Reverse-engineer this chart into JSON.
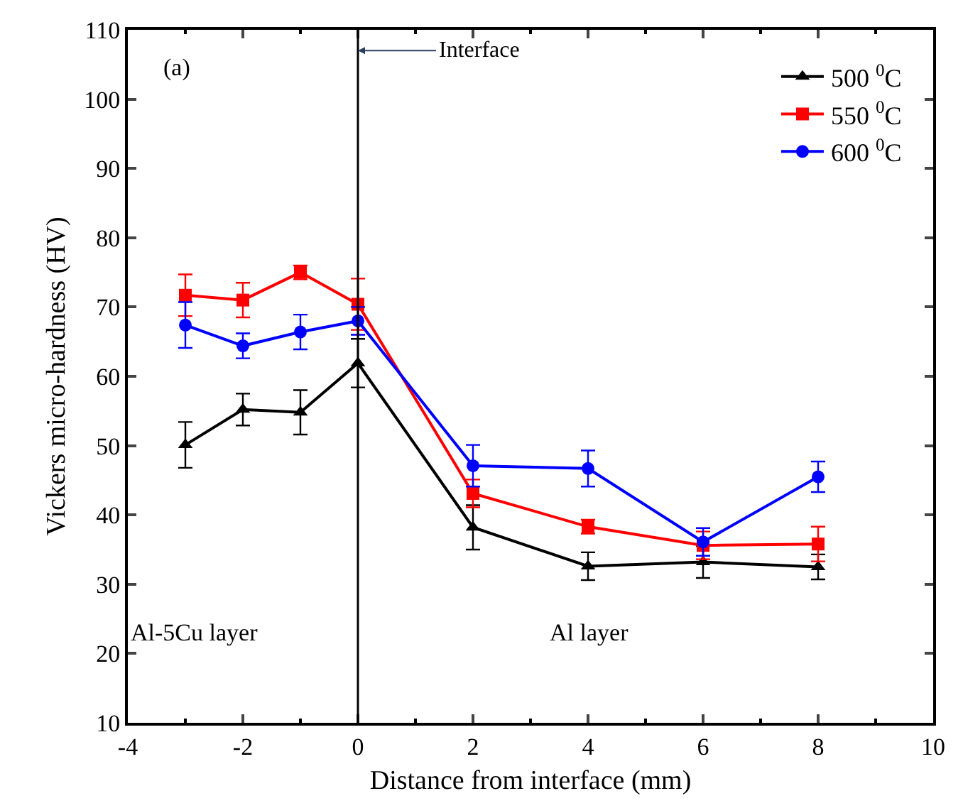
{
  "chart_data": {
    "type": "line",
    "xlabel": "Distance from interface (mm)",
    "ylabel": "Vickers micro-hardness (HV)",
    "x": [
      -3,
      -2,
      -1,
      0,
      2,
      4,
      6,
      8
    ],
    "series": [
      {
        "name": "500 $^{0}$C",
        "color": "#000000",
        "marker": "triangle",
        "values": [
          50.1,
          55.2,
          54.8,
          61.9,
          38.2,
          32.6,
          33.2,
          32.5
        ],
        "errors": [
          3.3,
          2.3,
          3.2,
          3.5,
          3.2,
          2.0,
          2.3,
          1.8
        ]
      },
      {
        "name": "550 $^{0}$C",
        "color": "#ff0000",
        "marker": "square",
        "values": [
          71.7,
          71.0,
          75.0,
          70.4,
          43.1,
          38.3,
          35.6,
          35.8
        ],
        "errors": [
          3.0,
          2.5,
          1.0,
          3.7,
          2.0,
          1.0,
          2.0,
          2.5
        ]
      },
      {
        "name": "600 $^{0}$C",
        "color": "#0000ff",
        "marker": "circle",
        "values": [
          67.4,
          64.4,
          66.4,
          68.0,
          47.1,
          46.7,
          36.1,
          45.5
        ],
        "errors": [
          3.3,
          1.8,
          2.5,
          2.0,
          3.0,
          2.6,
          2.0,
          2.2
        ]
      }
    ],
    "xlim": [
      -4,
      10
    ],
    "xticks": [
      -4,
      -2,
      0,
      2,
      4,
      6,
      8,
      10
    ],
    "ylim": [
      10,
      110
    ],
    "yticks": [
      10,
      20,
      30,
      40,
      50,
      60,
      70,
      80,
      90,
      100,
      110
    ],
    "ref_lines": [
      {
        "axis": "x",
        "value": 0,
        "label": "Interface",
        "color": "#000000"
      }
    ],
    "annotations": [
      "(a)",
      "Al-5Cu layer",
      "Al layer"
    ],
    "legend": "top right",
    "line_style": "solid"
  }
}
